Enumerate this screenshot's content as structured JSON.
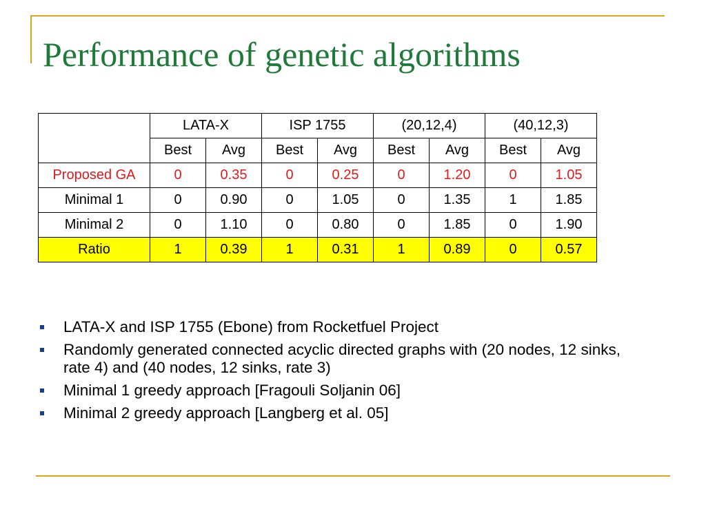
{
  "title": "Performance of genetic algorithms",
  "table": {
    "groups": [
      "LATA-X",
      "ISP 1755",
      "(20,12,4)",
      "(40,12,3)"
    ],
    "subheaders": [
      "Best",
      "Avg",
      "Best",
      "Avg",
      "Best",
      "Avg",
      "Best",
      "Avg"
    ],
    "rows": [
      {
        "label": "Proposed GA",
        "values": [
          "0",
          "0.35",
          "0",
          "0.25",
          "0",
          "1.20",
          "0",
          "1.05"
        ],
        "text_color": "#e3191b"
      },
      {
        "label": "Minimal 1",
        "values": [
          "0",
          "0.90",
          "0",
          "1.05",
          "0",
          "1.35",
          "1",
          "1.85"
        ]
      },
      {
        "label": "Minimal 2",
        "values": [
          "0",
          "1.10",
          "0",
          "0.80",
          "0",
          "1.85",
          "0",
          "1.90"
        ]
      },
      {
        "label": "Ratio",
        "values": [
          "1",
          "0.39",
          "1",
          "0.31",
          "1",
          "0.89",
          "0",
          "0.57"
        ],
        "highlight_color": "#ffff00"
      }
    ]
  },
  "bullets": [
    "LATA-X and ISP 1755 (Ebone) from Rocketfuel Project",
    "Randomly generated connected acyclic directed graphs with (20 nodes, 12 sinks, rate 4) and (40 nodes, 12 sinks, rate 3)",
    "Minimal 1 greedy approach [Fragouli Soljanin 06]",
    "Minimal 2 greedy approach [Langberg et al. 05]"
  ],
  "colors": {
    "title": "#1f7a3a",
    "accent_lines": "#d9a521",
    "bullet_marker": "#1a3f8a"
  }
}
